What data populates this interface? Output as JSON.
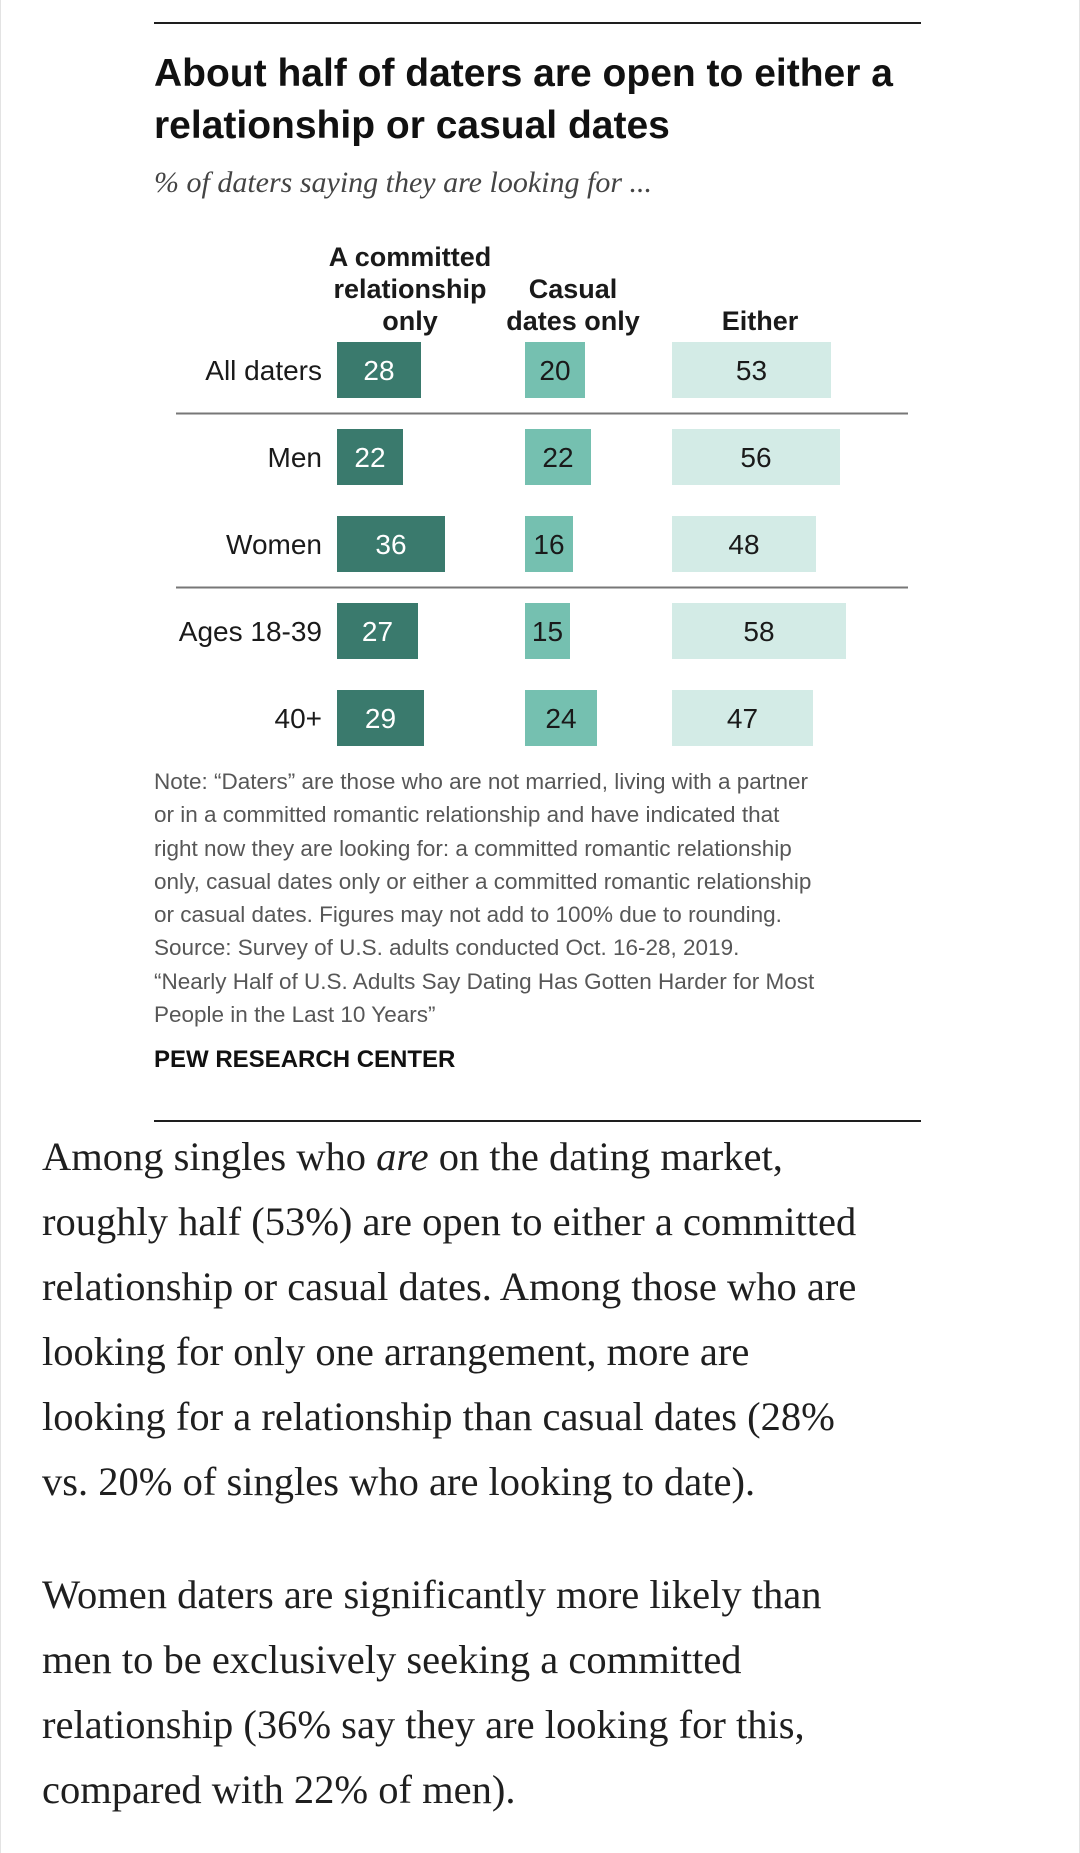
{
  "chart_data": {
    "type": "bar",
    "title": "About half of daters are open to either a relationship or casual dates",
    "title_lines": [
      "About half of daters are open to either a",
      "relationship or casual dates"
    ],
    "subtitle": "% of daters saying they are looking for ...",
    "categories": [
      "All daters",
      "Men",
      "Women",
      "Ages 18-39",
      "40+"
    ],
    "series": [
      {
        "name": "A committed relationship only",
        "name_lines": [
          "A committed",
          "relationship",
          "only"
        ],
        "color": "#3a7a6d",
        "values": [
          28,
          22,
          36,
          27,
          29
        ]
      },
      {
        "name": "Casual dates only",
        "name_lines": [
          "Casual",
          "dates only"
        ],
        "color": "#75c0b0",
        "values": [
          20,
          22,
          16,
          15,
          24
        ]
      },
      {
        "name": "Either",
        "name_lines": [
          "Either"
        ],
        "color": "#d3ebe6",
        "values": [
          53,
          56,
          48,
          58,
          47
        ]
      }
    ],
    "value_labels": "inside bars",
    "group_dividers_after": [
      "All daters",
      "Women"
    ],
    "legend": "column headers"
  },
  "note_lines": [
    "Note: “Daters” are those who are not married, living with a partner",
    "or in a committed romantic relationship and have indicated that",
    "right now they are looking for: a committed romantic relationship",
    "only, casual dates only or either a committed romantic relationship",
    "or casual dates. Figures may not add to 100% due to rounding.",
    "Source: Survey of U.S. adults conducted Oct. 16-28, 2019.",
    "“Nearly Half of U.S. Adults Say Dating Has Gotten Harder for Most",
    "People in the Last 10 Years”"
  ],
  "source_org": "PEW RESEARCH CENTER",
  "article": {
    "paragraph_1_lines": [
      {
        "before": "Among singles who ",
        "emphasis": "are",
        "after": " on the dating market,"
      },
      {
        "text": "roughly half (53%) are open to either a committed"
      },
      {
        "text": "relationship or casual dates. Among those who are"
      },
      {
        "text": "looking for only one arrangement, more are"
      },
      {
        "text": "looking for a relationship than casual dates (28%"
      },
      {
        "text": "vs. 20% of singles who are looking to date)."
      }
    ],
    "paragraph_2_lines": [
      "Women daters are significantly more likely than",
      "men to be exclusively seeking a committed",
      "relationship (36% say they are looking for this,",
      "compared with 22% of men)."
    ]
  }
}
